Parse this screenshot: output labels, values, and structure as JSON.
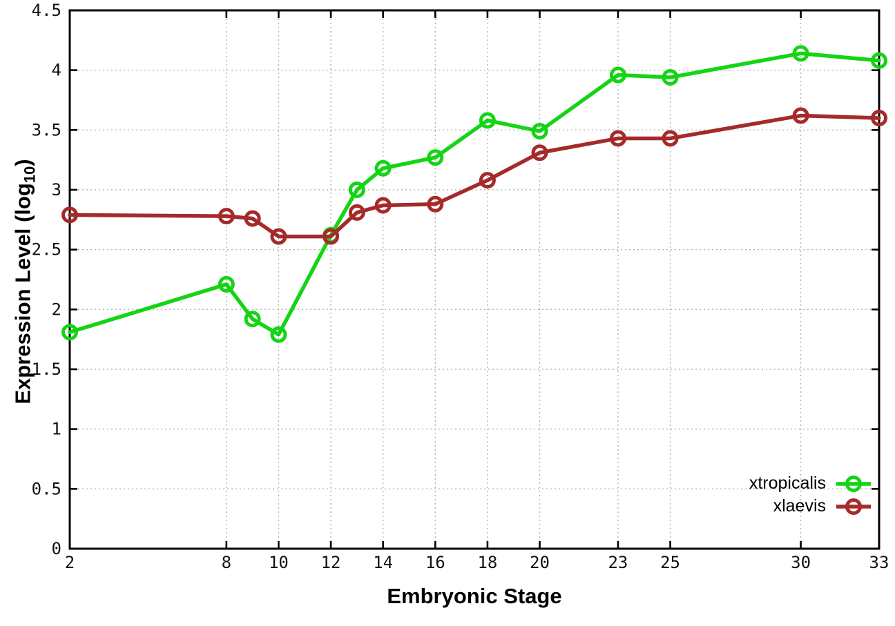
{
  "figure": {
    "xlabel": "Embryonic Stage",
    "ylabel": "Expression Level (log10)",
    "ylabel_parts": {
      "main": "Expression Level (log",
      "sub": "10",
      "close": ")"
    }
  },
  "chart_data": {
    "type": "line",
    "title": "",
    "xlabel": "Embryonic Stage",
    "ylabel": "Expression Level (log10)",
    "x": [
      2,
      8,
      9,
      10,
      12,
      13,
      14,
      16,
      18,
      20,
      23,
      25,
      30,
      33
    ],
    "series": [
      {
        "name": "xtropicalis",
        "color": "#15d415",
        "values": [
          1.81,
          2.21,
          1.92,
          1.79,
          2.62,
          3.0,
          3.18,
          3.27,
          3.58,
          3.49,
          3.96,
          3.94,
          4.14,
          4.08
        ]
      },
      {
        "name": "xlaevis",
        "color": "#a52a2a",
        "values": [
          2.79,
          2.78,
          2.76,
          2.61,
          2.61,
          2.81,
          2.87,
          2.88,
          3.08,
          3.31,
          3.43,
          3.43,
          3.62,
          3.6
        ]
      }
    ],
    "xlim": [
      2,
      33
    ],
    "ylim": [
      0,
      4.5
    ],
    "x_ticks": [
      2,
      8,
      10,
      12,
      14,
      16,
      18,
      20,
      23,
      25,
      30,
      33
    ],
    "x_tick_labels": [
      "2",
      "8",
      "10",
      "12",
      "14",
      "16",
      "18",
      "20",
      "23",
      "25",
      "30",
      "33"
    ],
    "y_ticks": [
      0,
      0.5,
      1,
      1.5,
      2,
      2.5,
      3,
      3.5,
      4,
      4.5
    ],
    "y_tick_labels": [
      "0",
      "0.5",
      "1",
      "1.5",
      "2",
      "2.5",
      "3",
      "3.5",
      "4",
      "4.5"
    ],
    "grid": true,
    "grid_style": "dotted",
    "marker": "open-circle",
    "legend_position": "inside-bottom-right",
    "background_color": "#ffffff",
    "border_color": "#000000",
    "grid_color": "#b3b3b3"
  }
}
